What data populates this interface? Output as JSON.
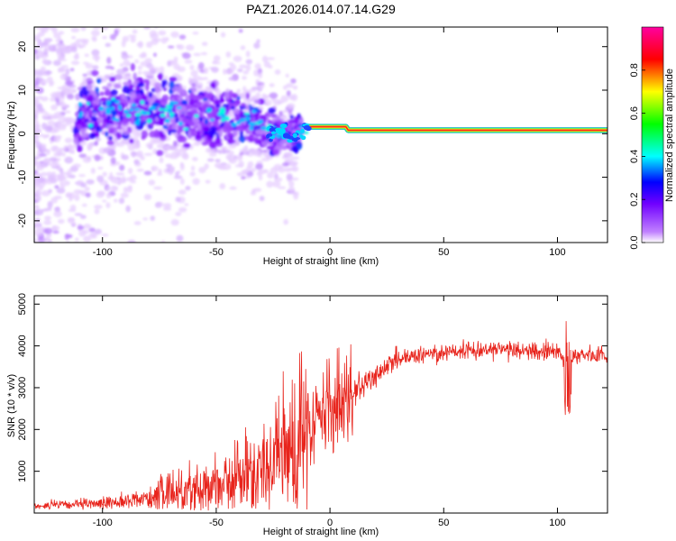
{
  "title": "PAZ1.2026.014.07.14.G29",
  "chart_data": [
    {
      "type": "heatmap",
      "title": "PAZ1.2026.014.07.14.G29",
      "xlabel": "Height of straight line (km)",
      "ylabel": "Frequency (Hz)",
      "xlim": [
        -130,
        122
      ],
      "ylim": [
        -25,
        24.5
      ],
      "xticks": [
        -100,
        -50,
        0,
        50,
        100
      ],
      "xtick_labels": [
        "-100",
        "-50",
        "0",
        "50",
        "100"
      ],
      "yticks": [
        -20,
        -10,
        0,
        10,
        20
      ],
      "ytick_labels": [
        "-20",
        "-10",
        "0",
        "10",
        "20"
      ],
      "colorbar": {
        "label": "Normalized spectral amplitude",
        "range": [
          0,
          1
        ],
        "ticks": [
          0.0,
          0.2,
          0.4,
          0.6,
          0.8
        ],
        "tick_labels": [
          "0.0",
          "0.2",
          "0.4",
          "0.6",
          "0.8"
        ],
        "colormap": [
          "#ffffff",
          "#8000ff",
          "#0000ff",
          "#00ffff",
          "#00ff00",
          "#ffff00",
          "#ff0000",
          "#ff00a0"
        ]
      },
      "ridge": {
        "description_points_height_km": [
          -110,
          -90,
          -70,
          -50,
          -35,
          -25,
          -15,
          -10,
          0,
          10,
          50,
          100,
          122
        ],
        "frequency_hz": [
          5,
          5.5,
          5,
          4.5,
          3,
          0.5,
          -0.5,
          1.5,
          1.5,
          0.8,
          0.8,
          0.8,
          0.8
        ]
      }
    },
    {
      "type": "line",
      "xlabel": "Height of straight line (km)",
      "ylabel": "SNR (10 * v/v)",
      "xlim": [
        -130,
        122
      ],
      "ylim": [
        0,
        5200
      ],
      "xticks": [
        -100,
        -50,
        0,
        50,
        100
      ],
      "xtick_labels": [
        "-100",
        "-50",
        "0",
        "50",
        "100"
      ],
      "yticks": [
        1000,
        2000,
        3000,
        4000,
        5000
      ],
      "ytick_labels": [
        "1000",
        "2000",
        "3000",
        "4000",
        "5000"
      ],
      "series": [
        {
          "name": "SNR",
          "color": "#e8241c",
          "x": [
            -130,
            -110,
            -90,
            -80,
            -70,
            -60,
            -50,
            -40,
            -30,
            -20,
            -15,
            -10,
            -5,
            0,
            5,
            10,
            15,
            20,
            25,
            30,
            40,
            50,
            60,
            70,
            80,
            90,
            100,
            104,
            106,
            110,
            122
          ],
          "y": [
            180,
            200,
            280,
            380,
            480,
            600,
            700,
            850,
            1000,
            1400,
            1700,
            2000,
            2250,
            2500,
            2600,
            2800,
            3100,
            3300,
            3500,
            3650,
            3800,
            3850,
            3900,
            3920,
            3900,
            3880,
            3850,
            3600,
            3700,
            3800,
            3750
          ]
        }
      ]
    }
  ]
}
